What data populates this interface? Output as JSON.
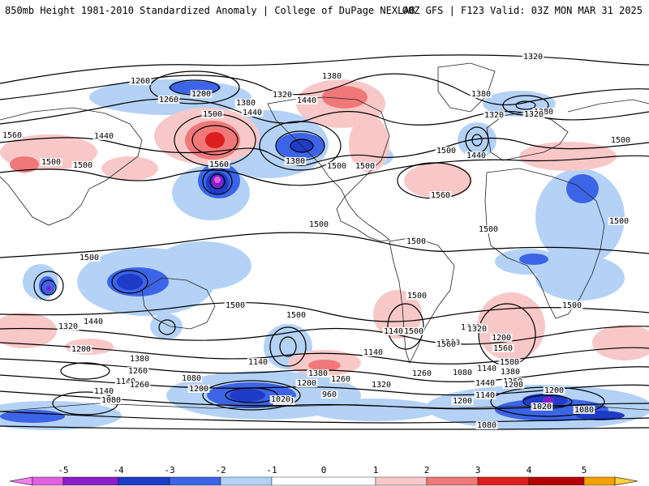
{
  "header": {
    "title_left": "850mb Height 1981-2010 Standardized Anomaly | College of DuPage NEXLAB",
    "title_right": "00Z GFS | F123 Valid: 03Z MON MAR 31 2025"
  },
  "map": {
    "contour_labels": [
      "1320",
      "1260",
      "1200",
      "1260",
      "1380",
      "1440",
      "1380",
      "1320",
      "1320",
      "1380",
      "1380",
      "1320",
      "1500",
      "1440",
      "1560",
      "1440",
      "1500",
      "1500",
      "1560",
      "1500",
      "1380",
      "1440",
      "1500",
      "1500",
      "1560",
      "1500",
      "1500",
      "1500",
      "1500",
      "1500",
      "1500",
      "1500",
      "1500",
      "1500",
      "1500",
      "1440",
      "1500",
      "1320",
      "1200",
      "1380",
      "1260",
      "1140",
      "1080",
      "1200",
      "1380",
      "1260",
      "1140",
      "1200",
      "1320",
      "1260",
      "1380",
      "1020",
      "960",
      "1080",
      "1140",
      "1200",
      "1140",
      "1080",
      "1200",
      "1020",
      "1080",
      "1140",
      "1080",
      "1260",
      "1140",
      "1200",
      "1560",
      "1500",
      "1380",
      "1260",
      "1200",
      "1140",
      "1560",
      "1320",
      "1440",
      "1500",
      "1440"
    ],
    "colors": {
      "neg5": "#e060e0",
      "neg4": "#8a1ec8",
      "neg3": "#1e3cc8",
      "neg2": "#3c64e6",
      "neg1": "#b4d2f5",
      "pos1": "#f8c8c8",
      "pos2": "#f07878",
      "pos3": "#dc1e1e",
      "pos4": "#b40000",
      "pos5": "#f5a000"
    }
  },
  "colorbar": {
    "ticks": [
      "-5",
      "-4",
      "-3",
      "-2",
      "-1",
      "0",
      "1",
      "2",
      "3",
      "4",
      "5"
    ]
  }
}
